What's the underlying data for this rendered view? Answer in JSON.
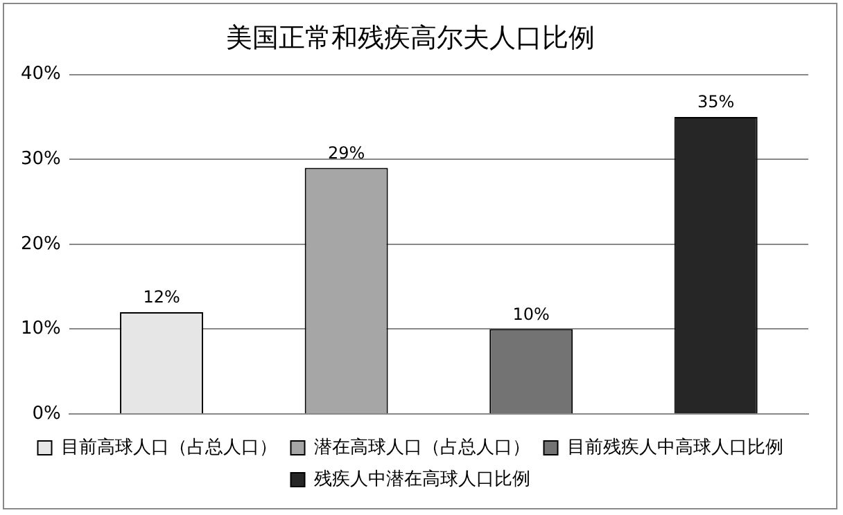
{
  "chart_data": {
    "type": "bar",
    "title": "美国正常和残疾高尔夫人口比例",
    "categories": [
      null,
      null,
      null,
      null
    ],
    "series": [
      {
        "name": "目前高球人口（占总人口）",
        "color": "#e6e6e6",
        "values": [
          12,
          null,
          null,
          null
        ],
        "value_labels": [
          "12%",
          null,
          null,
          null
        ]
      },
      {
        "name": "潜在高球人口（占总人口）",
        "color": "#a6a6a6",
        "values": [
          null,
          29,
          null,
          null
        ],
        "value_labels": [
          null,
          "29%",
          null,
          null
        ]
      },
      {
        "name": "目前残疾人中高球人口比例",
        "color": "#737373",
        "values": [
          null,
          null,
          10,
          null
        ],
        "value_labels": [
          null,
          null,
          "10%",
          null
        ]
      },
      {
        "name": "残疾人中潜在高球人口比例",
        "color": "#262626",
        "values": [
          null,
          null,
          null,
          35
        ],
        "value_labels": [
          null,
          null,
          null,
          "35%"
        ]
      }
    ],
    "ylim": [
      0,
      40
    ],
    "yticks": [
      {
        "value": 0,
        "label": "0%"
      },
      {
        "value": 10,
        "label": "10%"
      },
      {
        "value": 20,
        "label": "20%"
      },
      {
        "value": 30,
        "label": "30%"
      },
      {
        "value": 40,
        "label": "40%"
      }
    ],
    "grid": "y",
    "legend": "bottom"
  }
}
